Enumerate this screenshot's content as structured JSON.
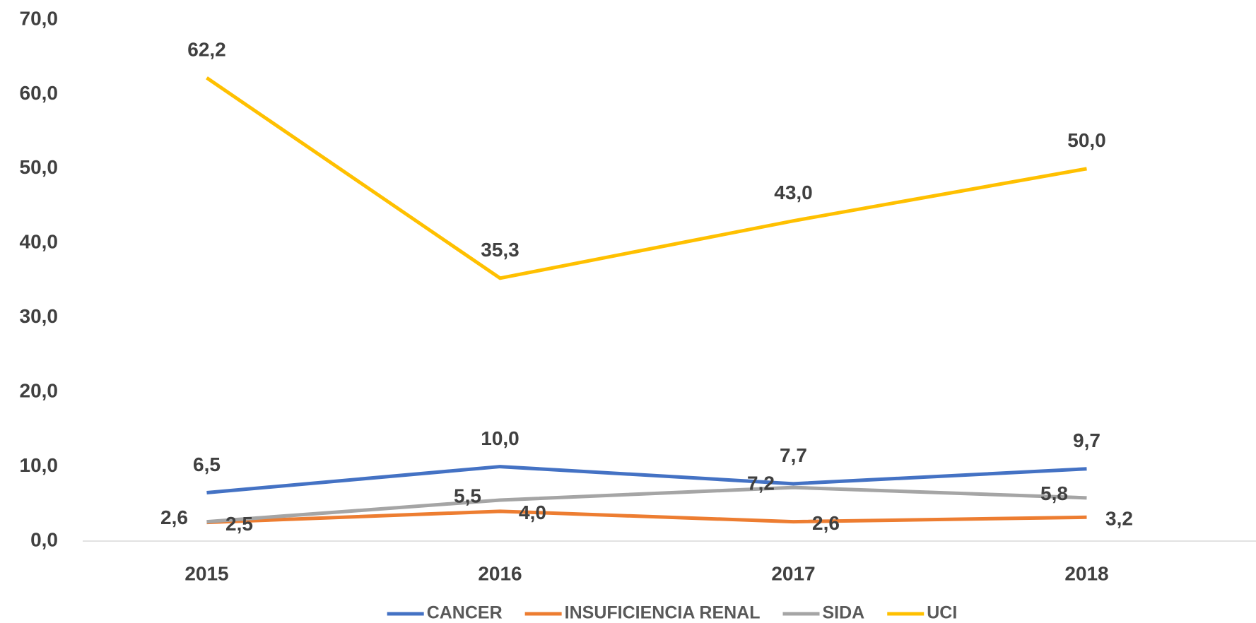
{
  "chart_data": {
    "type": "line",
    "categories": [
      "2015",
      "2016",
      "2017",
      "2018"
    ],
    "series": [
      {
        "name": "CANCER",
        "color": "#4472c4",
        "values": [
          6.5,
          10.0,
          7.7,
          9.7
        ],
        "value_labels": [
          "6,5",
          "10,0",
          "7,7",
          "9,7"
        ]
      },
      {
        "name": "INSUFICIENCIA RENAL",
        "color": "#ed7d31",
        "values": [
          2.5,
          4.0,
          2.6,
          3.2
        ],
        "value_labels": [
          "2,5",
          "4,0",
          "2,6",
          "3,2"
        ]
      },
      {
        "name": "SIDA",
        "color": "#a5a5a5",
        "values": [
          2.6,
          5.5,
          7.2,
          5.8
        ],
        "value_labels": [
          "2,6",
          "5,5",
          "7,2",
          "5,8"
        ]
      },
      {
        "name": "UCI",
        "color": "#ffc000",
        "values": [
          62.2,
          35.3,
          43.0,
          50.0
        ],
        "value_labels": [
          "62,2",
          "35,3",
          "43,0",
          "50,0"
        ]
      }
    ],
    "ylim": [
      0,
      70
    ],
    "yticks": [
      {
        "value": 0,
        "label": "0,0"
      },
      {
        "value": 10,
        "label": "10,0"
      },
      {
        "value": 20,
        "label": "20,0"
      },
      {
        "value": 30,
        "label": "30,0"
      },
      {
        "value": 40,
        "label": "40,0"
      },
      {
        "value": 50,
        "label": "50,0"
      },
      {
        "value": 60,
        "label": "60,0"
      },
      {
        "value": 70,
        "label": "70,0"
      }
    ],
    "grid": false,
    "legend": "bottom"
  }
}
